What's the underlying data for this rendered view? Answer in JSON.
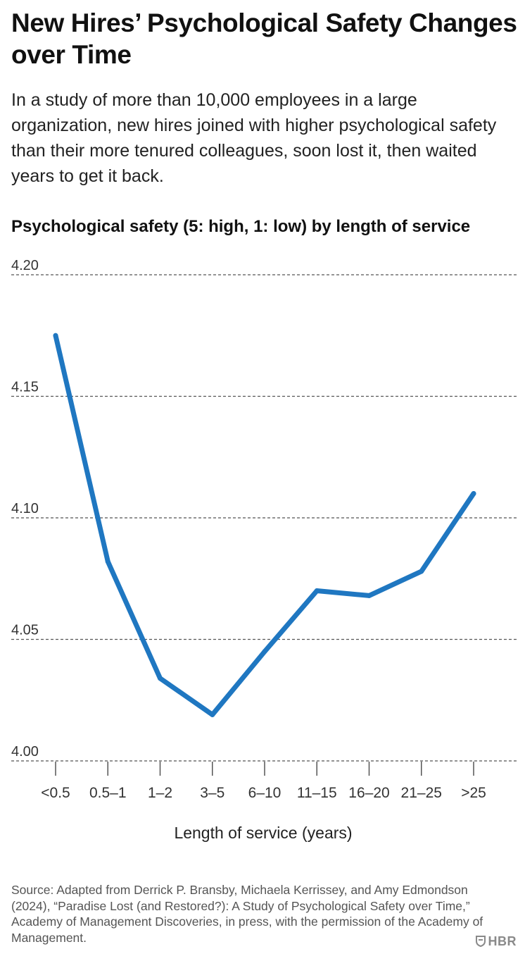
{
  "header": {
    "title": "New Hires’ Psychological Safety Changes over Time",
    "subtitle": "In a study of more than 10,000 employees in a large organization, new hires joined with higher psychological safety than their more tenured colleagues, soon lost it, then waited years to get it back."
  },
  "chart_data": {
    "type": "line",
    "title": "Psychological safety (5: high, 1: low) by length of service",
    "xlabel": "Length of service (years)",
    "ylabel": "",
    "categories": [
      "<0.5",
      "0.5–1",
      "1–2",
      "3–5",
      "6–10",
      "11–15",
      "16–20",
      "21–25",
      ">25"
    ],
    "series": [
      {
        "values": [
          4.175,
          4.082,
          4.034,
          4.019,
          4.045,
          4.07,
          4.068,
          4.078,
          4.11
        ]
      }
    ],
    "ylim": [
      4.0,
      4.2
    ],
    "yticks": [
      4.2,
      4.15,
      4.1,
      4.05,
      4.0
    ],
    "ytick_labels": [
      "4.20",
      "4.15",
      "4.10",
      "4.05",
      "4.00"
    ],
    "grid": "horizontal dashed",
    "line_color": "#1f77c1"
  },
  "footer": {
    "source": "Source: Adapted from Derrick P. Bransby, Michaela Kerrissey, and Amy Edmondson (2024), “Paradise Lost (and Restored?): A Study of Psychological Safety over Time,” Academy of Management Discoveries, in press, with the permission of the Academy of Management.",
    "logo_text": "HBR"
  }
}
